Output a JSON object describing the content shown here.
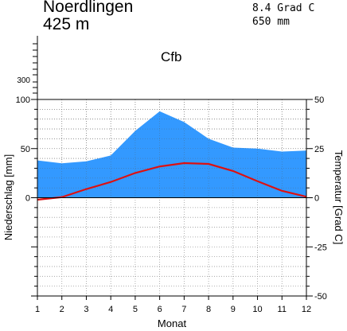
{
  "header": {
    "station": "Noerdlingen",
    "elevation": "425 m",
    "mean_temp": "8.4 Grad C",
    "annual_precip": "650 mm",
    "climate_class": "Cfb"
  },
  "chart_data": {
    "type": "area",
    "xlabel": "Monat",
    "ylabel_left": "Niederschlag [mm]",
    "ylabel_right": "Temperatur [Grad C]",
    "x": [
      1,
      2,
      3,
      4,
      5,
      6,
      7,
      8,
      9,
      10,
      11,
      12
    ],
    "x_ticks": [
      "1",
      "2",
      "3",
      "4",
      "5",
      "6",
      "7",
      "8",
      "9",
      "10",
      "11",
      "12"
    ],
    "left_axis": {
      "ylim": [
        -100,
        100
      ],
      "ticks": [
        "0",
        "50",
        "100"
      ],
      "extra_tick": "300"
    },
    "right_axis": {
      "ylim": [
        -50,
        50
      ],
      "ticks": [
        "-50",
        "-25",
        "0",
        "25",
        "50"
      ]
    },
    "grid": true,
    "series": [
      {
        "kind": "precipitation",
        "axis": "left",
        "color": "#3399ff",
        "values": [
          38,
          35,
          37,
          43,
          68,
          88,
          77,
          60,
          51,
          50,
          47,
          48
        ]
      },
      {
        "kind": "temperature",
        "axis": "right",
        "color": "#dd1111",
        "values": [
          -1.0,
          0.3,
          4.4,
          8.0,
          12.6,
          15.9,
          17.6,
          17.2,
          13.6,
          8.4,
          3.5,
          0.5
        ]
      }
    ]
  }
}
